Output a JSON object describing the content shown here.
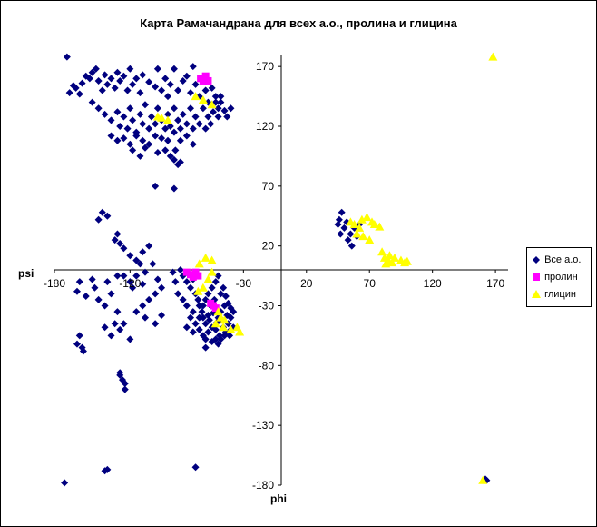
{
  "chart_data": {
    "type": "scatter",
    "title": "Карта  Рамачандрана  для всех а.о.,  пролина  и глицина",
    "xlabel": "phi",
    "ylabel": "psi",
    "xlim": [
      -180,
      180
    ],
    "ylim": [
      -180,
      180
    ],
    "xticks": [
      "-180",
      "-120",
      "-30",
      "20",
      "70",
      "120",
      "170"
    ],
    "xtick_values": [
      -180,
      -120,
      -30,
      20,
      70,
      120,
      170
    ],
    "yticks": [
      "170",
      "120",
      "70",
      "20",
      "-30",
      "-80",
      "-130",
      "-180"
    ],
    "ytick_values": [
      170,
      120,
      70,
      20,
      -30,
      -80,
      -130,
      -180
    ],
    "grid": false,
    "legend_position": "right",
    "series": [
      {
        "name": "Все а.о.",
        "color": "#00007F",
        "marker": "diamond",
        "points": [
          [
            -170,
            178
          ],
          [
            -165,
            154
          ],
          [
            -168,
            148
          ],
          [
            -163,
            152
          ],
          [
            -160,
            147
          ],
          [
            -158,
            156
          ],
          [
            -155,
            162
          ],
          [
            -150,
            165
          ],
          [
            -147,
            168
          ],
          [
            -152,
            160
          ],
          [
            -145,
            158
          ],
          [
            -140,
            163
          ],
          [
            -142,
            150
          ],
          [
            -138,
            155
          ],
          [
            -135,
            160
          ],
          [
            -132,
            152
          ],
          [
            -130,
            165
          ],
          [
            -128,
            158
          ],
          [
            -125,
            162
          ],
          [
            -122,
            150
          ],
          [
            -120,
            168
          ],
          [
            -118,
            155
          ],
          [
            -115,
            160
          ],
          [
            -112,
            148
          ],
          [
            -110,
            163
          ],
          [
            -105,
            157
          ],
          [
            -100,
            153
          ],
          [
            -98,
            168
          ],
          [
            -95,
            150
          ],
          [
            -92,
            160
          ],
          [
            -90,
            145
          ],
          [
            -88,
            155
          ],
          [
            -85,
            168
          ],
          [
            -82,
            150
          ],
          [
            -78,
            158
          ],
          [
            -75,
            162
          ],
          [
            -72,
            148
          ],
          [
            -70,
            170
          ],
          [
            -68,
            155
          ],
          [
            -65,
            145
          ],
          [
            -62,
            160
          ],
          [
            -60,
            150
          ],
          [
            -58,
            140
          ],
          [
            -55,
            152
          ],
          [
            -52,
            145
          ],
          [
            -50,
            135
          ],
          [
            -48,
            140
          ],
          [
            -150,
            140
          ],
          [
            -145,
            135
          ],
          [
            -140,
            130
          ],
          [
            -135,
            125
          ],
          [
            -130,
            132
          ],
          [
            -128,
            120
          ],
          [
            -125,
            128
          ],
          [
            -122,
            118
          ],
          [
            -120,
            135
          ],
          [
            -118,
            125
          ],
          [
            -115,
            115
          ],
          [
            -112,
            130
          ],
          [
            -110,
            122
          ],
          [
            -108,
            138
          ],
          [
            -105,
            118
          ],
          [
            -103,
            128
          ],
          [
            -100,
            122
          ],
          [
            -98,
            135
          ],
          [
            -95,
            125
          ],
          [
            -92,
            118
          ],
          [
            -90,
            130
          ],
          [
            -88,
            120
          ],
          [
            -85,
            135
          ],
          [
            -82,
            125
          ],
          [
            -80,
            118
          ],
          [
            -78,
            130
          ],
          [
            -75,
            122
          ],
          [
            -72,
            135
          ],
          [
            -70,
            118
          ],
          [
            -68,
            128
          ],
          [
            -65,
            122
          ],
          [
            -62,
            135
          ],
          [
            -60,
            118
          ],
          [
            -58,
            128
          ],
          [
            -56,
            122
          ],
          [
            -54,
            132
          ],
          [
            -52,
            140
          ],
          [
            -50,
            128
          ],
          [
            -48,
            145
          ],
          [
            -45,
            133
          ],
          [
            -43,
            128
          ],
          [
            -40,
            135
          ],
          [
            -135,
            112
          ],
          [
            -130,
            108
          ],
          [
            -125,
            110
          ],
          [
            -120,
            105
          ],
          [
            -115,
            112
          ],
          [
            -110,
            108
          ],
          [
            -105,
            105
          ],
          [
            -100,
            112
          ],
          [
            -95,
            110
          ],
          [
            -90,
            108
          ],
          [
            -85,
            115
          ],
          [
            -80,
            108
          ],
          [
            -75,
            112
          ],
          [
            -70,
            105
          ],
          [
            -118,
            100
          ],
          [
            -112,
            95
          ],
          [
            -108,
            102
          ],
          [
            -98,
            98
          ],
          [
            -92,
            100
          ],
          [
            -88,
            95
          ],
          [
            -85,
            92
          ],
          [
            -82,
            88
          ],
          [
            -80,
            90
          ],
          [
            -84,
            100
          ],
          [
            -100,
            70
          ],
          [
            -85,
            68
          ],
          [
            -142,
            48
          ],
          [
            -138,
            45
          ],
          [
            -145,
            42
          ],
          [
            -130,
            30
          ],
          [
            -132,
            25
          ],
          [
            -128,
            22
          ],
          [
            -125,
            18
          ],
          [
            -120,
            12
          ],
          [
            -115,
            8
          ],
          [
            -110,
            15
          ],
          [
            -105,
            20
          ],
          [
            -112,
            5
          ],
          [
            -108,
            -2
          ],
          [
            -115,
            -5
          ],
          [
            -120,
            -10
          ],
          [
            -118,
            -15
          ],
          [
            -125,
            -5
          ],
          [
            -110,
            -12
          ],
          [
            -102,
            5
          ],
          [
            -98,
            -8
          ],
          [
            -95,
            -15
          ],
          [
            -100,
            -20
          ],
          [
            -105,
            -25
          ],
          [
            -110,
            -30
          ],
          [
            -115,
            -35
          ],
          [
            -108,
            -40
          ],
          [
            -100,
            -45
          ],
          [
            -95,
            -38
          ],
          [
            -160,
            -10
          ],
          [
            -162,
            -18
          ],
          [
            -155,
            -22
          ],
          [
            -150,
            -8
          ],
          [
            -148,
            -15
          ],
          [
            -145,
            -25
          ],
          [
            -140,
            -30
          ],
          [
            -135,
            -20
          ],
          [
            -130,
            -35
          ],
          [
            -138,
            -10
          ],
          [
            -130,
            -5
          ],
          [
            -132,
            -45
          ],
          [
            -128,
            -50
          ],
          [
            -125,
            -45
          ],
          [
            -120,
            -58
          ],
          [
            -135,
            -55
          ],
          [
            -140,
            -48
          ],
          [
            -160,
            -55
          ],
          [
            -162,
            -62
          ],
          [
            -158,
            -65
          ],
          [
            -157,
            -68
          ],
          [
            -128,
            -88
          ],
          [
            -126,
            -92
          ],
          [
            -124,
            -95
          ],
          [
            -124,
            -100
          ],
          [
            -128,
            -86
          ],
          [
            -80,
            0
          ],
          [
            -78,
            -5
          ],
          [
            -75,
            -10
          ],
          [
            -72,
            -15
          ],
          [
            -70,
            -8
          ],
          [
            -68,
            -20
          ],
          [
            -66,
            -25
          ],
          [
            -65,
            -30
          ],
          [
            -63,
            -35
          ],
          [
            -62,
            -40
          ],
          [
            -60,
            -45
          ],
          [
            -58,
            -38
          ],
          [
            -57,
            -42
          ],
          [
            -56,
            -30
          ],
          [
            -55,
            -48
          ],
          [
            -54,
            -36
          ],
          [
            -53,
            -25
          ],
          [
            -52,
            -50
          ],
          [
            -51,
            -44
          ],
          [
            -50,
            -40
          ],
          [
            -49,
            -55
          ],
          [
            -48,
            -35
          ],
          [
            -47,
            -42
          ],
          [
            -46,
            -48
          ],
          [
            -45,
            -30
          ],
          [
            -44,
            -52
          ],
          [
            -43,
            -38
          ],
          [
            -42,
            -45
          ],
          [
            -41,
            -55
          ],
          [
            -40,
            -40
          ],
          [
            -70,
            -35
          ],
          [
            -72,
            -40
          ],
          [
            -75,
            -30
          ],
          [
            -78,
            -25
          ],
          [
            -68,
            -45
          ],
          [
            -65,
            -50
          ],
          [
            -62,
            -55
          ],
          [
            -60,
            -58
          ],
          [
            -58,
            -52
          ],
          [
            -55,
            -60
          ],
          [
            -52,
            -58
          ],
          [
            -50,
            -62
          ],
          [
            -48,
            -58
          ],
          [
            -45,
            -55
          ],
          [
            -65,
            -40
          ],
          [
            -62,
            -30
          ],
          [
            -60,
            -25
          ],
          [
            -58,
            -20
          ],
          [
            -55,
            -15
          ],
          [
            -52,
            -10
          ],
          [
            -50,
            -5
          ],
          [
            -48,
            -20
          ],
          [
            -46,
            -15
          ],
          [
            -44,
            -22
          ],
          [
            -42,
            -28
          ],
          [
            -40,
            -32
          ],
          [
            -38,
            -35
          ],
          [
            -38,
            -48
          ],
          [
            -40,
            -50
          ],
          [
            -60,
            -65
          ],
          [
            -75,
            -48
          ],
          [
            -70,
            -52
          ],
          [
            -82,
            -20
          ],
          [
            -84,
            -10
          ],
          [
            -86,
            -2
          ],
          [
            48,
            48
          ],
          [
            46,
            42
          ],
          [
            50,
            35
          ],
          [
            52,
            40
          ],
          [
            55,
            30
          ],
          [
            58,
            35
          ],
          [
            60,
            28
          ],
          [
            62,
            38
          ],
          [
            47,
            30
          ],
          [
            53,
            25
          ],
          [
            56,
            20
          ],
          [
            45,
            38
          ],
          [
            -172,
            -178
          ],
          [
            -140,
            -168
          ],
          [
            -138,
            -167
          ],
          [
            -68,
            -165
          ],
          [
            163,
            -176
          ],
          [
            162,
            -175
          ]
        ]
      },
      {
        "name": "пролин",
        "color": "#FF00FF",
        "marker": "square",
        "points": [
          [
            -64,
            160
          ],
          [
            -60,
            162
          ],
          [
            -58,
            158
          ],
          [
            -62,
            158
          ],
          [
            -75,
            -2
          ],
          [
            -72,
            -4
          ],
          [
            -70,
            -6
          ],
          [
            -68,
            -2
          ],
          [
            -66,
            -5
          ],
          [
            -56,
            -28
          ],
          [
            -54,
            -30
          ],
          [
            -52,
            -32
          ]
        ]
      },
      {
        "name": "глицин",
        "color": "#FFFF00",
        "marker": "triangle",
        "points": [
          [
            168,
            178
          ],
          [
            -68,
            145
          ],
          [
            -62,
            142
          ],
          [
            -55,
            138
          ],
          [
            -98,
            128
          ],
          [
            -95,
            127
          ],
          [
            -90,
            125
          ],
          [
            -60,
            10
          ],
          [
            -55,
            8
          ],
          [
            -65,
            5
          ],
          [
            -55,
            -2
          ],
          [
            -58,
            -8
          ],
          [
            -62,
            -15
          ],
          [
            -66,
            -18
          ],
          [
            -50,
            -35
          ],
          [
            -48,
            -40
          ],
          [
            -52,
            -45
          ],
          [
            -45,
            -42
          ],
          [
            -40,
            -50
          ],
          [
            -35,
            -48
          ],
          [
            -33,
            -52
          ],
          [
            -46,
            -48
          ],
          [
            55,
            40
          ],
          [
            58,
            38
          ],
          [
            62,
            35
          ],
          [
            64,
            42
          ],
          [
            68,
            44
          ],
          [
            72,
            40
          ],
          [
            74,
            38
          ],
          [
            78,
            36
          ],
          [
            60,
            30
          ],
          [
            65,
            28
          ],
          [
            70,
            25
          ],
          [
            80,
            15
          ],
          [
            82,
            10
          ],
          [
            85,
            8
          ],
          [
            88,
            6
          ],
          [
            90,
            10
          ],
          [
            95,
            8
          ],
          [
            98,
            6
          ],
          [
            100,
            7
          ],
          [
            83,
            5
          ],
          [
            86,
            12
          ],
          [
            160,
            -176
          ]
        ]
      }
    ]
  }
}
